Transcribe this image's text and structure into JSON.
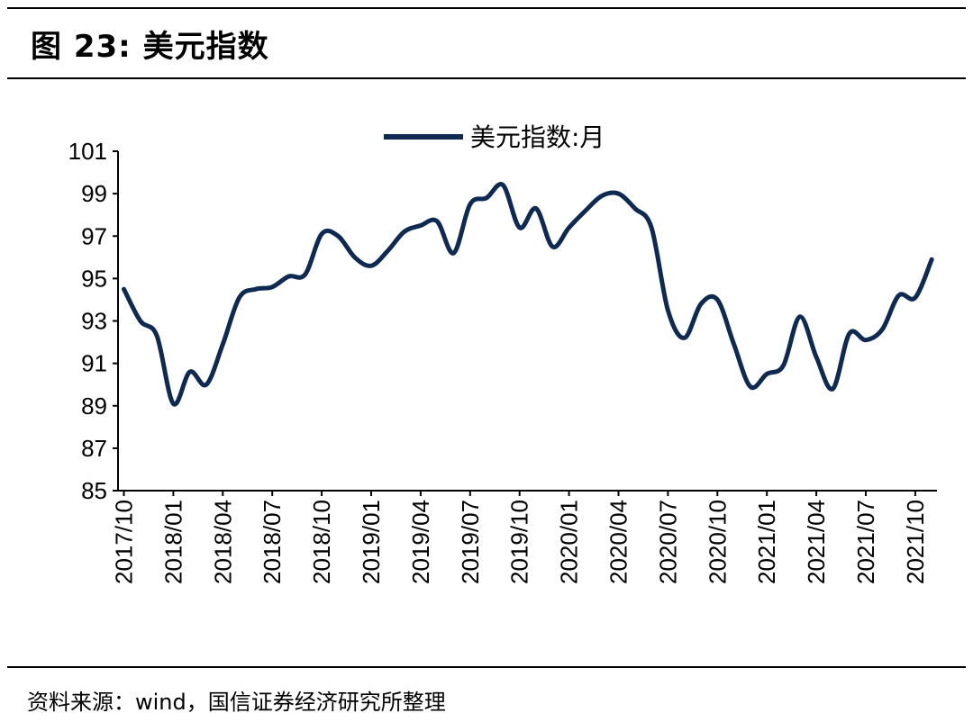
{
  "header": {
    "title": "图 23:  美元指数"
  },
  "footer": {
    "source": "资料来源：wind，国信证券经济研究所整理"
  },
  "chart_data": {
    "type": "line",
    "title": "",
    "xlabel": "",
    "ylabel": "",
    "ylim": [
      85,
      101
    ],
    "yticks": [
      "85",
      "87",
      "89",
      "91",
      "93",
      "95",
      "97",
      "99",
      "101"
    ],
    "grid": false,
    "legend_placement": "top-center",
    "color": "#0e2a52",
    "tick_labels": [
      "2017/10",
      "2018/01",
      "2018/04",
      "2018/07",
      "2018/10",
      "2019/01",
      "2019/04",
      "2019/07",
      "2019/10",
      "2020/01",
      "2020/04",
      "2020/07",
      "2020/10",
      "2021/01",
      "2021/04",
      "2021/07",
      "2021/10"
    ],
    "series": [
      {
        "name": "美元指数:月",
        "x": [
          "2017/10",
          "2017/11",
          "2017/12",
          "2018/01",
          "2018/02",
          "2018/03",
          "2018/04",
          "2018/05",
          "2018/06",
          "2018/07",
          "2018/08",
          "2018/09",
          "2018/10",
          "2018/11",
          "2018/12",
          "2019/01",
          "2019/02",
          "2019/03",
          "2019/04",
          "2019/05",
          "2019/06",
          "2019/07",
          "2019/08",
          "2019/09",
          "2019/10",
          "2019/11",
          "2019/12",
          "2020/01",
          "2020/02",
          "2020/03",
          "2020/04",
          "2020/05",
          "2020/06",
          "2020/07",
          "2020/08",
          "2020/09",
          "2020/10",
          "2020/11",
          "2020/12",
          "2021/01",
          "2021/02",
          "2021/03",
          "2021/04",
          "2021/05",
          "2021/06",
          "2021/07",
          "2021/08",
          "2021/09",
          "2021/10",
          "2021/11"
        ],
        "values": [
          94.5,
          93.0,
          92.3,
          89.1,
          90.6,
          90.0,
          91.9,
          94.1,
          94.5,
          94.6,
          95.1,
          95.2,
          97.1,
          97.0,
          96.0,
          95.6,
          96.3,
          97.2,
          97.5,
          97.7,
          96.2,
          98.5,
          98.8,
          99.4,
          97.4,
          98.3,
          96.5,
          97.4,
          98.2,
          98.9,
          99.0,
          98.3,
          97.4,
          93.5,
          92.2,
          93.8,
          94.0,
          91.9,
          89.9,
          90.5,
          90.9,
          93.2,
          91.3,
          89.8,
          92.4,
          92.1,
          92.6,
          94.2,
          94.1,
          95.9
        ]
      }
    ]
  }
}
